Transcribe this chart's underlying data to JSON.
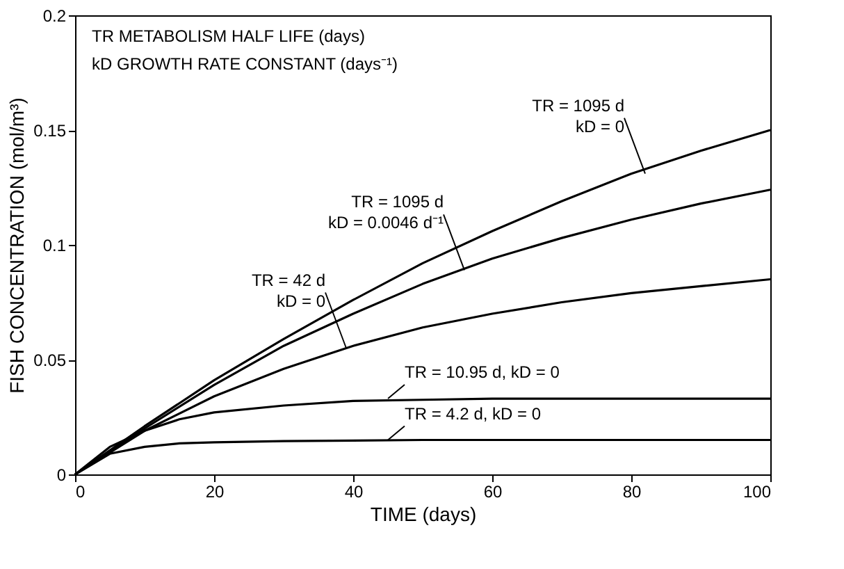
{
  "chart_data": {
    "type": "line",
    "xlabel": "TIME (days)",
    "ylabel": "FISH CONCENTRATION (mol/m³)",
    "xlim": [
      0,
      100
    ],
    "ylim": [
      0,
      0.2
    ],
    "xticks": [
      0,
      20,
      40,
      60,
      80,
      100
    ],
    "yticks": [
      0,
      0.05,
      0.1,
      0.15,
      0.2
    ],
    "grid": false,
    "marker": "none",
    "line_style": "solid",
    "series": [
      {
        "color": "#000000",
        "x": [
          0,
          10,
          20,
          30,
          40,
          50,
          60,
          70,
          80,
          90,
          100
        ],
        "values": [
          0,
          0.021,
          0.041,
          0.059,
          0.076,
          0.092,
          0.106,
          0.119,
          0.131,
          0.141,
          0.15
        ]
      },
      {
        "color": "#000000",
        "x": [
          0,
          10,
          20,
          30,
          40,
          50,
          60,
          70,
          80,
          90,
          100
        ],
        "values": [
          0,
          0.02,
          0.039,
          0.056,
          0.07,
          0.083,
          0.094,
          0.103,
          0.111,
          0.118,
          0.124
        ]
      },
      {
        "color": "#000000",
        "x": [
          0,
          10,
          20,
          30,
          40,
          50,
          60,
          70,
          80,
          90,
          100
        ],
        "values": [
          0,
          0.019,
          0.034,
          0.046,
          0.056,
          0.064,
          0.07,
          0.075,
          0.079,
          0.082,
          0.085
        ]
      },
      {
        "color": "#000000",
        "x": [
          0,
          5,
          10,
          15,
          20,
          30,
          40,
          50,
          60,
          80,
          100
        ],
        "values": [
          0,
          0.012,
          0.019,
          0.024,
          0.027,
          0.03,
          0.032,
          0.0325,
          0.033,
          0.033,
          0.033
        ]
      },
      {
        "color": "#000000",
        "x": [
          0,
          5,
          10,
          15,
          20,
          30,
          50,
          70,
          100
        ],
        "values": [
          0,
          0.009,
          0.012,
          0.0135,
          0.014,
          0.0145,
          0.015,
          0.015,
          0.015
        ]
      }
    ],
    "annotations": [
      "TR METABOLISM HALF LIFE (days)",
      "kD GROWTH RATE CONSTANT (days⁻¹)",
      {
        "text": "TR = 1095 d\nkD = 0",
        "x": 82,
        "y": 0.131
      },
      {
        "text": "TR = 1095 d\nkD = 0.0046 d⁻¹",
        "x": 56,
        "y": 0.089
      },
      {
        "text": "TR = 42 d\nkD = 0",
        "x": 39,
        "y": 0.055
      },
      {
        "text": "TR = 10.95 d, kD = 0",
        "x": 45,
        "y": 0.033
      },
      {
        "text": "TR = 4.2 d, kD = 0",
        "x": 45,
        "y": 0.015
      }
    ]
  }
}
